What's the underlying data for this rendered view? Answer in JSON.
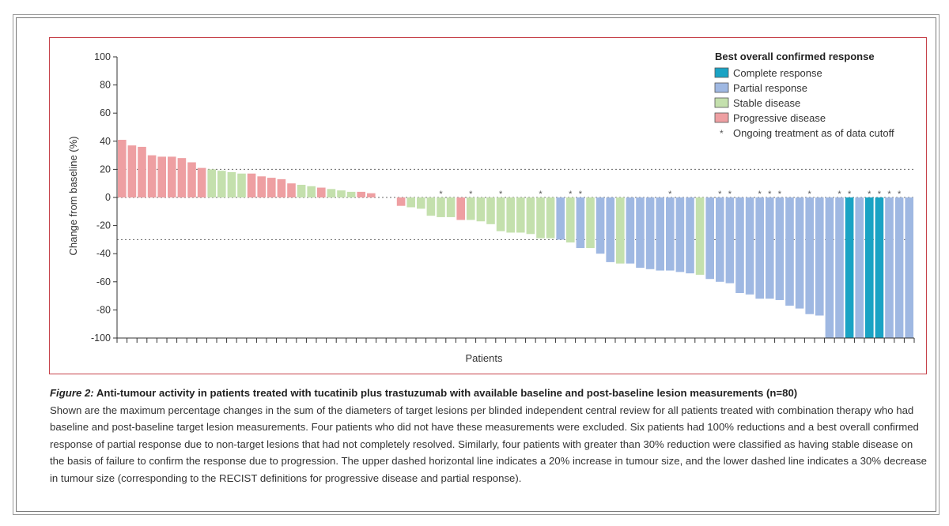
{
  "figure": {
    "label": "Figure 2:",
    "title": "Anti-tumour activity in patients treated with tucatinib plus trastuzumab with available baseline and post-baseline lesion measurements (n=80)",
    "description": "Shown are the maximum percentage changes in the sum of the diameters of target lesions per blinded independent central review for all patients treated with combination therapy who had baseline and post-baseline target lesion measurements. Four patients who did not have these measurements were excluded. Six patients had 100% reductions and a best overall confirmed response of partial response due to non-target lesions that had not completely resolved. Similarly, four patients with greater than 30% reduction were classified as having stable disease on the basis of failure to confirm the response due to progression. The upper dashed horizontal line indicates a 20% increase in tumour size, and the lower dashed line indicates a 30% decrease in tumour size (corresponding to the RECIST definitions for progressive disease and partial response)."
  },
  "chart_data": {
    "type": "bar",
    "xlabel": "Patients",
    "ylabel": "Change from baseline (%)",
    "ylim": [
      -100,
      100
    ],
    "yticks": [
      100,
      80,
      60,
      40,
      20,
      0,
      -20,
      -40,
      -60,
      -80,
      -100
    ],
    "reference_lines": [
      20,
      0,
      -30
    ],
    "legend": {
      "title": "Best overall confirmed response",
      "placement": "top-right",
      "items": [
        {
          "key": "CR",
          "label": "Complete response",
          "color": "#1aa3c4"
        },
        {
          "key": "PR",
          "label": "Partial response",
          "color": "#9fb8e2"
        },
        {
          "key": "SD",
          "label": "Stable disease",
          "color": "#c4e0ad"
        },
        {
          "key": "PD",
          "label": "Progressive disease",
          "color": "#ee9fa2"
        }
      ],
      "asterisk_note": "Ongoing treatment as of data cutoff",
      "asterisk_symbol": "*"
    },
    "bars": [
      {
        "v": 41,
        "r": "PD",
        "a": false
      },
      {
        "v": 37,
        "r": "PD",
        "a": false
      },
      {
        "v": 36,
        "r": "PD",
        "a": false
      },
      {
        "v": 30,
        "r": "PD",
        "a": false
      },
      {
        "v": 29,
        "r": "PD",
        "a": false
      },
      {
        "v": 29,
        "r": "PD",
        "a": false
      },
      {
        "v": 28,
        "r": "PD",
        "a": false
      },
      {
        "v": 25,
        "r": "PD",
        "a": false
      },
      {
        "v": 21,
        "r": "PD",
        "a": false
      },
      {
        "v": 20,
        "r": "SD",
        "a": false
      },
      {
        "v": 19,
        "r": "SD",
        "a": false
      },
      {
        "v": 18,
        "r": "SD",
        "a": false
      },
      {
        "v": 17,
        "r": "SD",
        "a": false
      },
      {
        "v": 17,
        "r": "PD",
        "a": false
      },
      {
        "v": 15,
        "r": "PD",
        "a": false
      },
      {
        "v": 14,
        "r": "PD",
        "a": false
      },
      {
        "v": 13,
        "r": "PD",
        "a": false
      },
      {
        "v": 10,
        "r": "PD",
        "a": false
      },
      {
        "v": 9,
        "r": "SD",
        "a": false
      },
      {
        "v": 8,
        "r": "SD",
        "a": false
      },
      {
        "v": 7,
        "r": "PD",
        "a": false
      },
      {
        "v": 6,
        "r": "SD",
        "a": false
      },
      {
        "v": 5,
        "r": "SD",
        "a": false
      },
      {
        "v": 4,
        "r": "SD",
        "a": false
      },
      {
        "v": 4,
        "r": "PD",
        "a": false
      },
      {
        "v": 3,
        "r": "PD",
        "a": false
      },
      {
        "v": 0,
        "r": "SD",
        "a": false
      },
      {
        "v": 0,
        "r": "SD",
        "a": false
      },
      {
        "v": -6,
        "r": "PD",
        "a": false
      },
      {
        "v": -7,
        "r": "SD",
        "a": false
      },
      {
        "v": -8,
        "r": "SD",
        "a": false
      },
      {
        "v": -13,
        "r": "SD",
        "a": false
      },
      {
        "v": -14,
        "r": "SD",
        "a": true
      },
      {
        "v": -14,
        "r": "SD",
        "a": false
      },
      {
        "v": -16,
        "r": "PD",
        "a": false
      },
      {
        "v": -16,
        "r": "SD",
        "a": true
      },
      {
        "v": -17,
        "r": "SD",
        "a": false
      },
      {
        "v": -19,
        "r": "SD",
        "a": false
      },
      {
        "v": -24,
        "r": "SD",
        "a": true
      },
      {
        "v": -25,
        "r": "SD",
        "a": false
      },
      {
        "v": -25,
        "r": "SD",
        "a": false
      },
      {
        "v": -26,
        "r": "SD",
        "a": false
      },
      {
        "v": -29,
        "r": "SD",
        "a": true
      },
      {
        "v": -29,
        "r": "SD",
        "a": false
      },
      {
        "v": -30,
        "r": "PR",
        "a": false
      },
      {
        "v": -32,
        "r": "SD",
        "a": true
      },
      {
        "v": -36,
        "r": "PR",
        "a": true
      },
      {
        "v": -36,
        "r": "SD",
        "a": false
      },
      {
        "v": -40,
        "r": "PR",
        "a": false
      },
      {
        "v": -46,
        "r": "PR",
        "a": false
      },
      {
        "v": -47,
        "r": "SD",
        "a": false
      },
      {
        "v": -47,
        "r": "PR",
        "a": false
      },
      {
        "v": -50,
        "r": "PR",
        "a": false
      },
      {
        "v": -51,
        "r": "PR",
        "a": false
      },
      {
        "v": -52,
        "r": "PR",
        "a": false
      },
      {
        "v": -52,
        "r": "PR",
        "a": true
      },
      {
        "v": -53,
        "r": "PR",
        "a": false
      },
      {
        "v": -54,
        "r": "PR",
        "a": false
      },
      {
        "v": -55,
        "r": "SD",
        "a": false
      },
      {
        "v": -58,
        "r": "PR",
        "a": false
      },
      {
        "v": -60,
        "r": "PR",
        "a": true
      },
      {
        "v": -61,
        "r": "PR",
        "a": true
      },
      {
        "v": -68,
        "r": "PR",
        "a": false
      },
      {
        "v": -69,
        "r": "PR",
        "a": false
      },
      {
        "v": -72,
        "r": "PR",
        "a": true
      },
      {
        "v": -72,
        "r": "PR",
        "a": true
      },
      {
        "v": -73,
        "r": "PR",
        "a": true
      },
      {
        "v": -77,
        "r": "PR",
        "a": false
      },
      {
        "v": -79,
        "r": "PR",
        "a": false
      },
      {
        "v": -83,
        "r": "PR",
        "a": true
      },
      {
        "v": -84,
        "r": "PR",
        "a": false
      },
      {
        "v": -100,
        "r": "PR",
        "a": false
      },
      {
        "v": -100,
        "r": "PR",
        "a": true
      },
      {
        "v": -100,
        "r": "CR",
        "a": true
      },
      {
        "v": -100,
        "r": "PR",
        "a": false
      },
      {
        "v": -100,
        "r": "CR",
        "a": true
      },
      {
        "v": -100,
        "r": "CR",
        "a": true
      },
      {
        "v": -100,
        "r": "PR",
        "a": true
      },
      {
        "v": -100,
        "r": "PR",
        "a": true
      },
      {
        "v": -100,
        "r": "PR",
        "a": false
      }
    ]
  }
}
